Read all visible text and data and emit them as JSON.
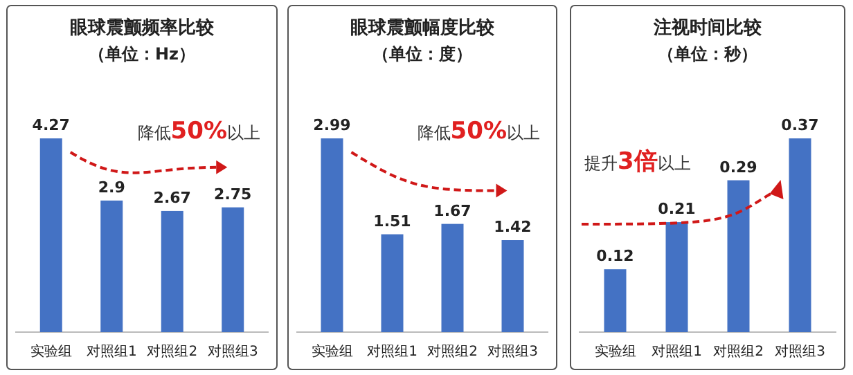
{
  "chart_data": [
    {
      "type": "bar",
      "title": "眼球震颤频率比较",
      "subtitle": "（单位：Hz）",
      "categories": [
        "实验组",
        "对照组1",
        "对照组2",
        "对照组3"
      ],
      "values": [
        4.27,
        2.9,
        2.67,
        2.75
      ],
      "color": "#4472c4",
      "data_labels": true,
      "annotations": [
        "降低**50%**以上"
      ]
    },
    {
      "type": "bar",
      "title": "眼球震颤幅度比较",
      "subtitle": "（单位：度）",
      "categories": [
        "实验组",
        "对照组1",
        "对照组2",
        "对照组3"
      ],
      "values": [
        2.99,
        1.51,
        1.67,
        1.42
      ],
      "color": "#4472c4",
      "data_labels": true,
      "annotations": [
        "降低**50%**以上"
      ]
    },
    {
      "type": "bar",
      "title": "注视时间比较",
      "subtitle": "（单位：秒）",
      "categories": [
        "实验组",
        "对照组1",
        "对照组2",
        "对照组3"
      ],
      "values": [
        0.12,
        0.21,
        0.29,
        0.37
      ],
      "color": "#4472c4",
      "data_labels": true,
      "annotations": [
        "提升**3倍**以上"
      ]
    }
  ]
}
